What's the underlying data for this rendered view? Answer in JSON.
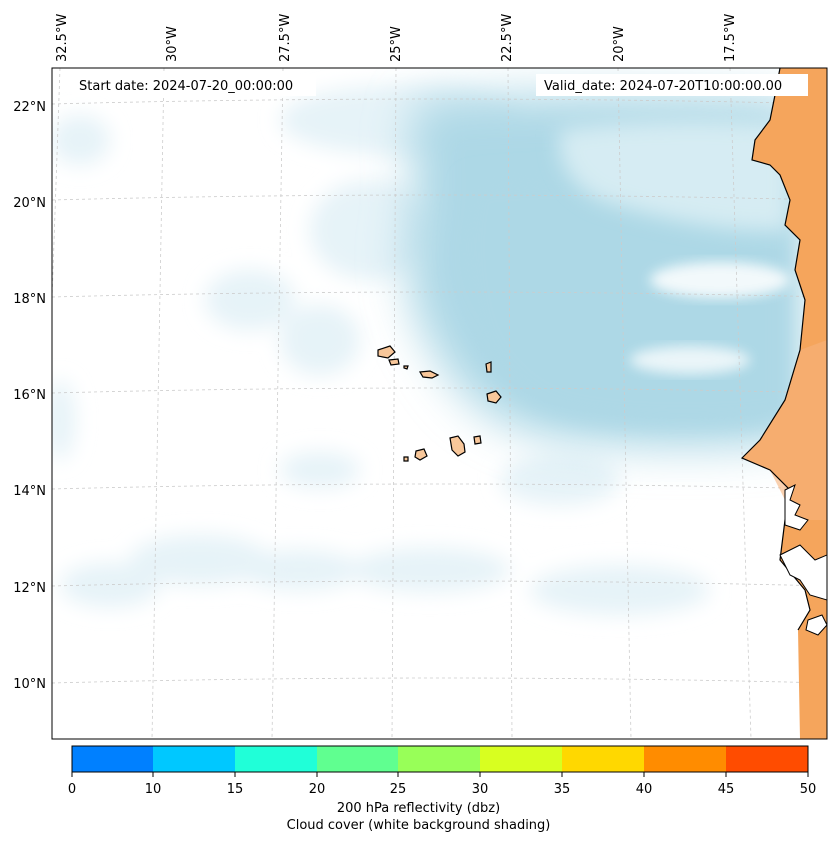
{
  "header": {
    "start_date": "Start date: 2024-07-20_00:00:00",
    "valid_date": "Valid_date: 2024-07-20T10:00:00.00"
  },
  "axes": {
    "longitude_labels": [
      "32.5°W",
      "30°W",
      "27.5°W",
      "25°W",
      "22.5°W",
      "20°W",
      "17.5°W"
    ],
    "latitude_labels": [
      "22°N",
      "20°N",
      "18°N",
      "16°N",
      "14°N",
      "12°N",
      "10°N"
    ]
  },
  "colorbar": {
    "ticks": [
      "0",
      "10",
      "15",
      "20",
      "25",
      "30",
      "35",
      "40",
      "45",
      "50"
    ],
    "colors": [
      "#0080ff",
      "#00c8ff",
      "#20ffd8",
      "#60ff90",
      "#98ff58",
      "#d8ff20",
      "#ffd800",
      "#ff8c00",
      "#ff4c00"
    ],
    "label_line1": "200 hPa reflectivity (dbz)",
    "label_line2": "Cloud cover (white background shading)"
  },
  "colors": {
    "land": "#f5a55c",
    "island_fill": "#f8c79a",
    "cloud": "#add8e6",
    "cloud_light": "#e6f3f8",
    "grid": "#cccccc"
  }
}
